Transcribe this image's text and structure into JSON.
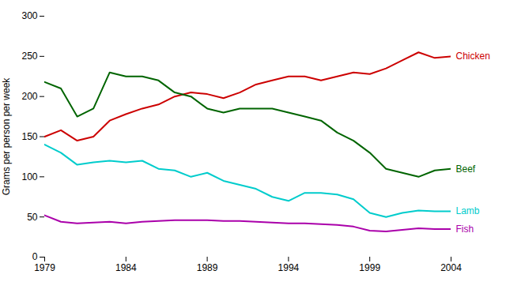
{
  "chart_data": {
    "type": "line",
    "ylabel": "Grams per person per week",
    "x": [
      1979,
      1980,
      1981,
      1982,
      1983,
      1984,
      1985,
      1986,
      1987,
      1988,
      1989,
      1990,
      1991,
      1992,
      1993,
      1994,
      1995,
      1996,
      1997,
      1998,
      1999,
      2000,
      2001,
      2002,
      2003,
      2004
    ],
    "series": [
      {
        "name": "Chicken",
        "color": "#cc0000",
        "values": [
          150,
          158,
          145,
          150,
          170,
          178,
          185,
          190,
          200,
          205,
          203,
          198,
          205,
          215,
          220,
          225,
          225,
          220,
          225,
          230,
          228,
          235,
          245,
          255,
          248,
          250
        ]
      },
      {
        "name": "Beef",
        "color": "#006400",
        "values": [
          218,
          210,
          175,
          185,
          230,
          225,
          225,
          220,
          205,
          200,
          185,
          180,
          185,
          185,
          185,
          180,
          175,
          170,
          155,
          145,
          130,
          110,
          105,
          100,
          108,
          110
        ]
      },
      {
        "name": "Lamb",
        "color": "#00cccc",
        "values": [
          140,
          130,
          115,
          118,
          120,
          118,
          120,
          110,
          108,
          100,
          105,
          95,
          90,
          85,
          75,
          70,
          80,
          80,
          78,
          72,
          55,
          50,
          55,
          58,
          57,
          57
        ]
      },
      {
        "name": "Fish",
        "color": "#aa00aa",
        "values": [
          52,
          44,
          42,
          43,
          44,
          42,
          44,
          45,
          46,
          46,
          46,
          45,
          45,
          44,
          43,
          42,
          42,
          41,
          40,
          38,
          33,
          32,
          34,
          36,
          35,
          35
        ]
      }
    ],
    "xlim": [
      1979,
      2004
    ],
    "ylim": [
      0,
      300
    ],
    "xticks": [
      1979,
      1984,
      1989,
      1994,
      1999,
      2004
    ],
    "yticks": [
      0,
      50,
      100,
      150,
      200,
      250,
      300
    ],
    "grid": false
  }
}
